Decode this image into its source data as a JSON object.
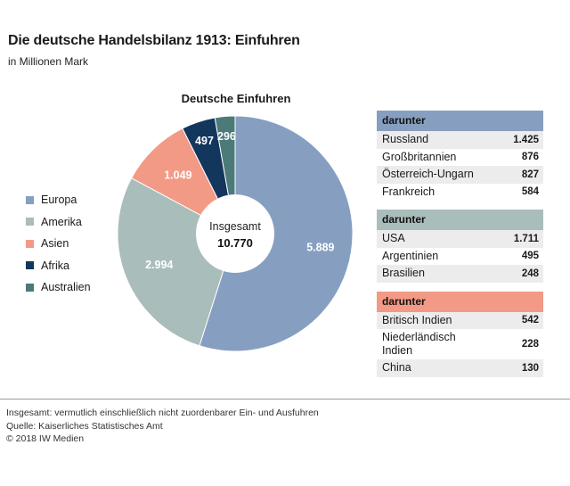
{
  "title": "Die deutsche Handelsbilanz 1913: Einfuhren",
  "subtitle": "in Millionen Mark",
  "chart_data": {
    "type": "pie",
    "variant": "donut",
    "title": "Deutsche Einfuhren",
    "center_label": "Insgesamt",
    "center_value": "10.770",
    "slices": [
      {
        "name": "Europa",
        "value": 5889,
        "label": "5.889",
        "color": "#869fc1",
        "label_color": "#ffffff"
      },
      {
        "name": "Amerika",
        "value": 2994,
        "label": "2.994",
        "color": "#a9bdbb",
        "label_color": "#ffffff"
      },
      {
        "name": "Asien",
        "value": 1049,
        "label": "1.049",
        "color": "#f29a85",
        "label_color": "#ffffff"
      },
      {
        "name": "Afrika",
        "value": 497,
        "label": "497",
        "color": "#13365c",
        "label_color": "#ffffff"
      },
      {
        "name": "Australien",
        "value": 296,
        "label": "296",
        "color": "#4c7a79",
        "label_color": "#ffffff"
      }
    ],
    "legend_position": "left"
  },
  "legend": [
    {
      "label": "Europa",
      "color": "#869fc1"
    },
    {
      "label": "Amerika",
      "color": "#a9bdbb"
    },
    {
      "label": "Asien",
      "color": "#f29a85"
    },
    {
      "label": "Afrika",
      "color": "#13365c"
    },
    {
      "label": "Australien",
      "color": "#4c7a79"
    }
  ],
  "tables": [
    {
      "header": "darunter",
      "color": "#869fc1",
      "rows": [
        {
          "name": "Russland",
          "value": "1.425"
        },
        {
          "name": "Großbritannien",
          "value": "876"
        },
        {
          "name": "Österreich-Ungarn",
          "value": "827"
        },
        {
          "name": "Frankreich",
          "value": "584"
        }
      ]
    },
    {
      "header": "darunter",
      "color": "#a9bdbb",
      "rows": [
        {
          "name": "USA",
          "value": "1.711"
        },
        {
          "name": "Argentinien",
          "value": "495"
        },
        {
          "name": "Brasilien",
          "value": "248"
        }
      ]
    },
    {
      "header": "darunter",
      "color": "#f29a85",
      "rows": [
        {
          "name": "Britisch Indien",
          "value": "542"
        },
        {
          "name": "Niederländisch Indien",
          "value": "228"
        },
        {
          "name": "China",
          "value": "130"
        }
      ]
    }
  ],
  "footer": {
    "note": "Insgesamt: vermutlich einschließlich nicht zuordenbarer Ein- und Ausfuhren",
    "source": "Quelle: Kaiserliches Statistisches Amt",
    "copyright": "© 2018 IW Medien"
  }
}
